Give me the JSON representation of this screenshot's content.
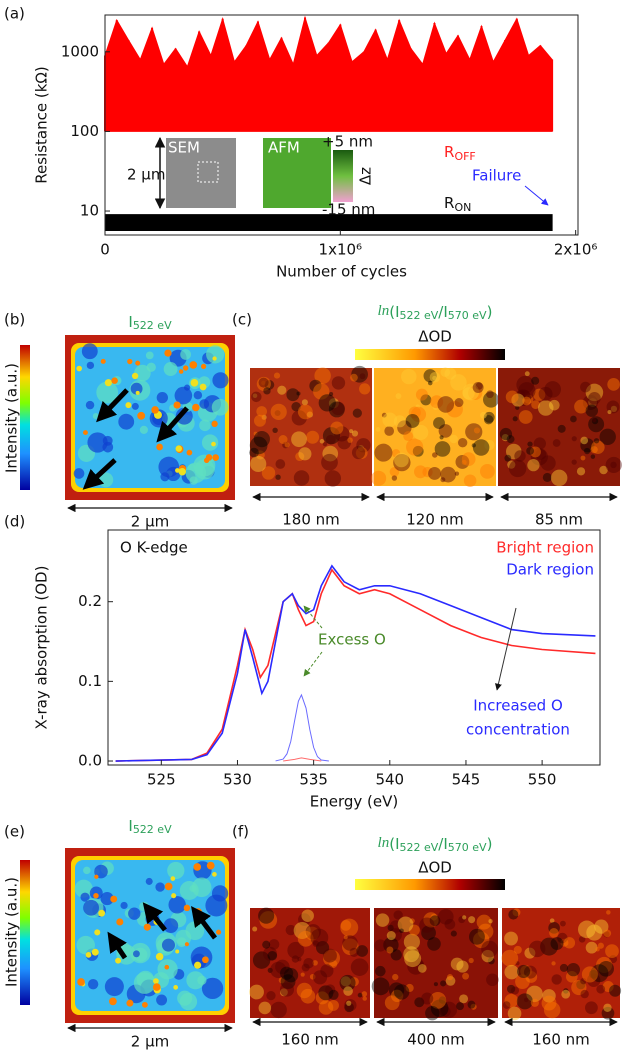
{
  "panel_labels": [
    "(a)",
    "(b)",
    "(c)",
    "(d)",
    "(e)",
    "(f)"
  ],
  "chart_data": [
    {
      "type": "band",
      "ylabel": "Resistance (kΩ)",
      "xlabel": "Number of cycles",
      "log_y": true,
      "xlim": [
        0,
        2010000
      ],
      "ylim": [
        5,
        2900
      ],
      "yticks": [
        10,
        100,
        1000
      ],
      "xticks": [
        0,
        {
          "value": 1000000,
          "label": "1x10⁶"
        },
        {
          "value": 2000000,
          "label": "2x10⁶"
        }
      ],
      "series": [
        {
          "color": "#ff0000",
          "x": [
            0,
            50000,
            100000,
            150000,
            200000,
            250000,
            300000,
            350000,
            400000,
            450000,
            500000,
            550000,
            600000,
            650000,
            700000,
            750000,
            800000,
            850000,
            900000,
            950000,
            1000000,
            1050000,
            1100000,
            1150000,
            1200000,
            1250000,
            1300000,
            1350000,
            1400000,
            1450000,
            1500000,
            1550000,
            1600000,
            1650000,
            1700000,
            1750000,
            1800000,
            1850000,
            1900000
          ],
          "low": [
            100,
            100,
            100,
            100,
            100,
            100,
            100,
            100,
            100,
            100,
            100,
            100,
            100,
            100,
            100,
            100,
            100,
            100,
            100,
            100,
            100,
            100,
            100,
            100,
            100,
            100,
            100,
            100,
            100,
            100,
            100,
            100,
            100,
            100,
            100,
            100,
            100,
            100,
            100
          ],
          "high": [
            900,
            2500,
            1400,
            800,
            2000,
            700,
            1100,
            650,
            1800,
            900,
            2600,
            750,
            1200,
            2400,
            800,
            1500,
            700,
            2700,
            900,
            1300,
            2200,
            750,
            1000,
            1900,
            800,
            2500,
            1100,
            700,
            2300,
            950,
            1600,
            800,
            2100,
            750,
            1400,
            2600,
            900,
            1200,
            800
          ]
        },
        {
          "color": "#000000",
          "x": [
            0,
            1900000
          ],
          "low": [
            5.7,
            5.7
          ],
          "high": [
            9,
            9
          ]
        }
      ],
      "annotations": {
        "roff": {
          "main": "R",
          "sub": "OFF"
        },
        "ron": {
          "main": "R",
          "sub": "ON"
        },
        "failure": "Failure",
        "scale": "2 µm",
        "sem": "SEM",
        "afm": "AFM",
        "z_top": "+5 nm",
        "z_bottom": "-15 nm",
        "z_label": "Δz"
      }
    },
    {
      "type": "line",
      "ylabel": "X-ray absorption (OD)",
      "xlabel": "Energy (eV)",
      "xlim": [
        521.5,
        553.8
      ],
      "ylim": [
        -0.005,
        0.29
      ],
      "xticks": [
        525,
        530,
        535,
        540,
        545,
        550
      ],
      "yticks": [
        {
          "value": 0,
          "label": "0.0"
        },
        0.1,
        0.2
      ],
      "series": [
        {
          "name": "Bright region",
          "color": "#ff2a2a",
          "x": [
            522,
            527,
            528,
            529,
            530,
            530.5,
            531,
            531.5,
            532,
            533,
            533.6,
            534,
            534.5,
            535,
            535.5,
            536.2,
            537,
            538,
            539,
            540,
            542,
            544,
            546,
            548,
            550,
            553.5
          ],
          "values": [
            0,
            0.002,
            0.01,
            0.04,
            0.12,
            0.165,
            0.14,
            0.105,
            0.12,
            0.2,
            0.21,
            0.19,
            0.17,
            0.175,
            0.21,
            0.24,
            0.22,
            0.21,
            0.215,
            0.21,
            0.19,
            0.17,
            0.155,
            0.145,
            0.14,
            0.135
          ]
        },
        {
          "name": "Dark region",
          "color": "#2a2aff",
          "x": [
            522,
            527,
            528,
            529,
            530,
            530.5,
            531,
            531.6,
            532,
            533,
            533.6,
            534,
            534.5,
            535,
            535.5,
            536.2,
            537,
            538,
            539,
            540,
            542,
            544,
            546,
            548,
            550,
            553.5
          ],
          "values": [
            0,
            0.002,
            0.008,
            0.035,
            0.11,
            0.165,
            0.13,
            0.085,
            0.1,
            0.2,
            0.21,
            0.195,
            0.185,
            0.19,
            0.22,
            0.245,
            0.225,
            0.215,
            0.22,
            0.22,
            0.21,
            0.195,
            0.18,
            0.165,
            0.16,
            0.157
          ]
        }
      ],
      "fits": [
        {
          "color": "#6b6bff",
          "x": [
            532.5,
            533,
            533.25,
            533.5,
            533.75,
            534,
            534.2,
            534.5,
            534.75,
            535,
            535.25,
            535.5,
            536
          ],
          "values": [
            0.0001,
            0.0024,
            0.009,
            0.0247,
            0.0504,
            0.0752,
            0.083,
            0.0665,
            0.0393,
            0.0171,
            0.0055,
            0.0013,
            0
          ]
        },
        {
          "color": "#ff6b6b",
          "x": [
            533,
            533.75,
            534.2,
            534.75,
            535.5
          ],
          "values": [
            0,
            0.002,
            0.004,
            0.002,
            0
          ]
        }
      ],
      "annotations": {
        "edge": "O K-edge",
        "excess": "Excess O",
        "increased_1": "Increased O",
        "increased_2": "concentration"
      }
    }
  ],
  "panels": {
    "b": {
      "title": {
        "main": "I",
        "sub": "522 eV"
      },
      "colorbar_label": "Intensity (a.u.)",
      "scale": "2 µm"
    },
    "c": {
      "title": {
        "fn": "ln",
        "open": "(I",
        "sub1": "522 eV",
        "mid": "/I",
        "sub2": "570 eV",
        "close": ")"
      },
      "colorbar_label": "ΔOD",
      "scales": [
        "180 nm",
        "120 nm",
        "85 nm"
      ]
    },
    "e": {
      "title": {
        "main": "I",
        "sub": "522 eV"
      },
      "colorbar_label": "Intensity (a.u.)",
      "scale": "2 µm"
    },
    "f": {
      "title": {
        "fn": "ln",
        "open": "(I",
        "sub1": "522 eV",
        "mid": "/I",
        "sub2": "570 eV",
        "close": ")"
      },
      "colorbar_label": "ΔOD",
      "scales": [
        "160 nm",
        "400 nm",
        "160 nm"
      ]
    }
  }
}
